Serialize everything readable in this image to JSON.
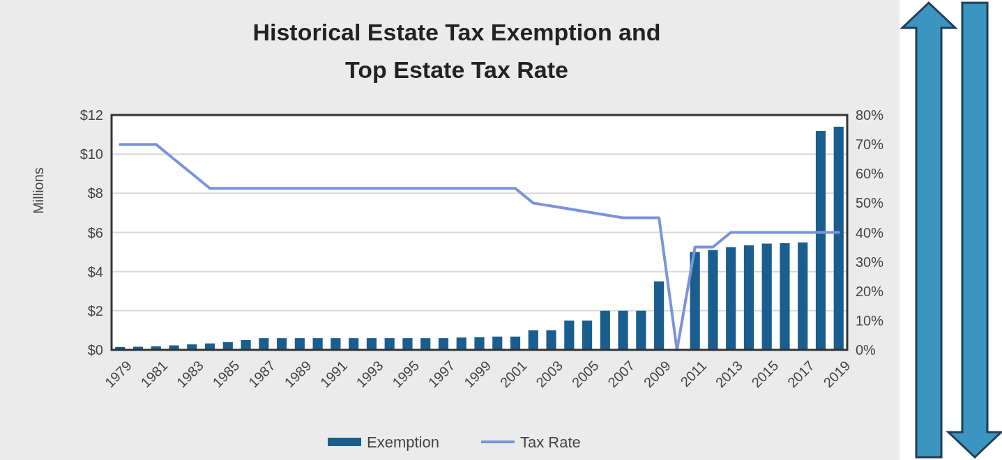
{
  "chart_data": {
    "type": "bar",
    "title": "Historical Estate Tax Exemption and Top Estate Tax Rate",
    "ylabel": "Millions",
    "categories": [
      "1979",
      null,
      "1981",
      null,
      "1983",
      null,
      "1985",
      null,
      "1987",
      null,
      "1989",
      null,
      "1991",
      null,
      "1993",
      null,
      "1995",
      null,
      "1997",
      null,
      "1999",
      null,
      "2001",
      null,
      "2003",
      null,
      "2005",
      null,
      "2007",
      null,
      "2009",
      null,
      "2011",
      null,
      "2013",
      null,
      "2015",
      null,
      "2017",
      null,
      "2019"
    ],
    "series": [
      {
        "name": "Exemption",
        "color": "#1a5e8f",
        "values": [
          0.15,
          0.16,
          0.18,
          0.23,
          0.28,
          0.33,
          0.4,
          0.5,
          0.6,
          0.6,
          0.6,
          0.6,
          0.6,
          0.6,
          0.6,
          0.6,
          0.6,
          0.6,
          0.6,
          0.63,
          0.65,
          0.68,
          0.68,
          1,
          1,
          1.5,
          1.5,
          2,
          2,
          2,
          3.5,
          0,
          5,
          5.1,
          5.25,
          5.34,
          5.43,
          5.45,
          5.49,
          11.18,
          11.4
        ]
      },
      {
        "name": "Tax Rate",
        "type": "line",
        "axis": "y2",
        "color": "#7b93dc",
        "values": [
          70,
          70,
          70,
          65,
          60,
          55,
          55,
          55,
          55,
          55,
          55,
          55,
          55,
          55,
          55,
          55,
          55,
          55,
          55,
          55,
          55,
          55,
          55,
          50,
          49,
          48,
          47,
          46,
          45,
          45,
          45,
          0,
          35,
          35,
          40,
          40,
          40,
          40,
          40,
          40,
          40
        ]
      }
    ],
    "ylim": [
      0,
      12
    ],
    "yticks": [
      {
        "value": 0,
        "label": "$0"
      },
      {
        "value": 2,
        "label": "$2"
      },
      {
        "value": 4,
        "label": "$4"
      },
      {
        "value": 6,
        "label": "$6"
      },
      {
        "value": 8,
        "label": "$8"
      },
      {
        "value": 10,
        "label": "$10"
      },
      {
        "value": 12,
        "label": "$12"
      }
    ],
    "y2lim": [
      0,
      80
    ],
    "y2ticks": [
      {
        "value": 0,
        "label": "0%"
      },
      {
        "value": 10,
        "label": "10%"
      },
      {
        "value": 20,
        "label": "20%"
      },
      {
        "value": 30,
        "label": "30%"
      },
      {
        "value": 40,
        "label": "40%"
      },
      {
        "value": 50,
        "label": "50%"
      },
      {
        "value": 60,
        "label": "60%"
      },
      {
        "value": 70,
        "label": "70%"
      },
      {
        "value": 80,
        "label": "80%"
      }
    ],
    "grid": "y",
    "legend": "bottom",
    "line_style": "solid"
  }
}
